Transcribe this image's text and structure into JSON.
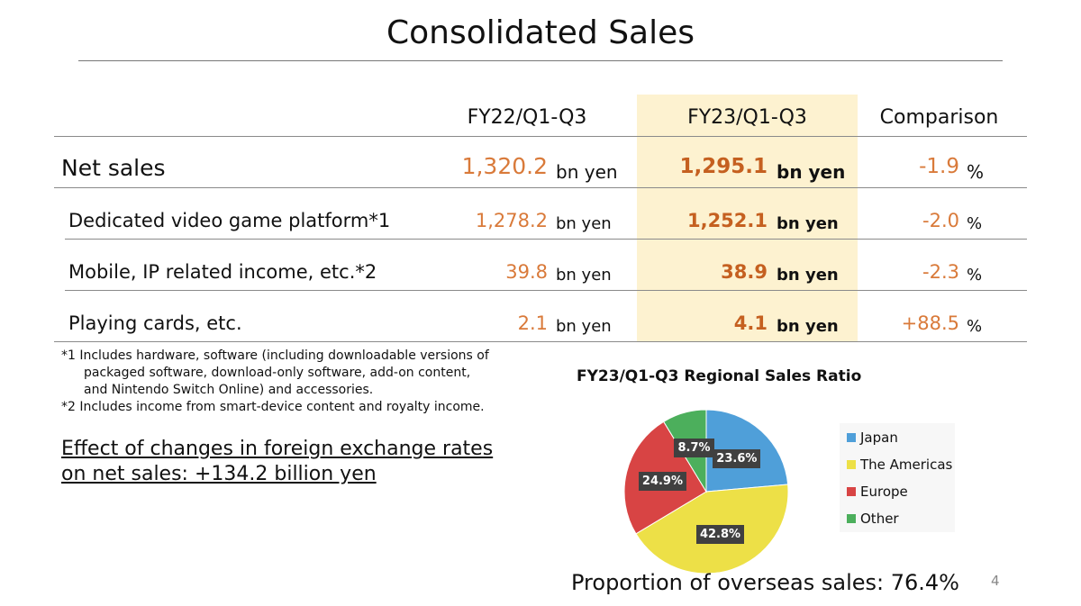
{
  "title": "Consolidated Sales",
  "table": {
    "headers": [
      "FY22/Q1-Q3",
      "FY23/Q1-Q3",
      "Comparison"
    ],
    "rows": [
      {
        "label": "Net sales",
        "fy22": "1,320.2",
        "fy22_unit": "bn yen",
        "fy23": "1,295.1",
        "fy23_unit": "bn yen",
        "cmp": "-1.9",
        "cmp_unit": "%"
      },
      {
        "label": "Dedicated video game platform*1",
        "fy22": "1,278.2",
        "fy22_unit": "bn yen",
        "fy23": "1,252.1",
        "fy23_unit": "bn yen",
        "cmp": "-2.0",
        "cmp_unit": "%"
      },
      {
        "label": "Mobile, IP related income, etc.*2",
        "fy22": "39.8",
        "fy22_unit": "bn yen",
        "fy23": "38.9",
        "fy23_unit": "bn yen",
        "cmp": "-2.3",
        "cmp_unit": "%"
      },
      {
        "label": "Playing cards, etc.",
        "fy22": "2.1",
        "fy22_unit": "bn yen",
        "fy23": "4.1",
        "fy23_unit": "bn yen",
        "cmp": "+88.5",
        "cmp_unit": "%"
      }
    ]
  },
  "notes": [
    "*1 Includes hardware, software (including downloadable versions of",
    "packaged software, download-only software, add-on content,",
    "and Nintendo Switch Online) and accessories.",
    "*2 Includes income from smart-device content and royalty income."
  ],
  "fx_note": [
    "Effect of changes in foreign exchange rates",
    "on net sales: +134.2 billion yen"
  ],
  "overseas_text": "Proportion of overseas sales: 76.4%",
  "page_number": "4",
  "colors": {
    "highlight": "#fdf2d0",
    "number": "#d97a3a"
  },
  "chart_data": {
    "type": "pie",
    "title": "FY23/Q1-Q3 Regional Sales Ratio",
    "slices": [
      {
        "name": "Japan",
        "value": 23.6,
        "label": "23.6%",
        "color": "#4f9fd9"
      },
      {
        "name": "The Americas",
        "value": 42.8,
        "label": "42.8%",
        "color": "#ede047"
      },
      {
        "name": "Europe",
        "value": 24.9,
        "label": "24.9%",
        "color": "#d84444"
      },
      {
        "name": "Other",
        "value": 8.7,
        "label": "8.7%",
        "color": "#4caf5c"
      }
    ],
    "legend_position": "right"
  }
}
